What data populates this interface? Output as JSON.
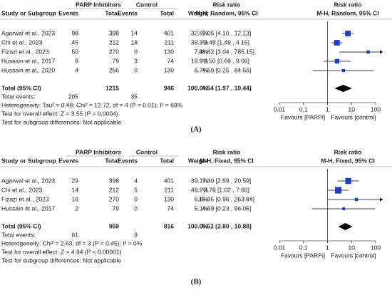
{
  "chart_data": [
    {
      "type": "forest",
      "label": "(A)",
      "header": {
        "group1": "PARP Inhibitors",
        "group2": "Control",
        "study": "Study or Subgroup",
        "events1": "Events",
        "total1": "Total",
        "events2": "Events",
        "total2": "Total",
        "weight": "Weight",
        "rr_title": "Risk ratio",
        "rr_method": "M-H, Random, 95% CI",
        "plot_title": "Risk ratio",
        "plot_method": "M-H, Random, 95% CI"
      },
      "studies": [
        {
          "name": "Agarwal et al., 2023",
          "events1": 98,
          "total1": 398,
          "events2": 14,
          "total2": 401,
          "weight": 32.8,
          "weight_label": "32.8%",
          "ci_label": "7.05 [4.10 , 12.13]",
          "rr": 7.05,
          "lower": 4.1,
          "upper": 12.13
        },
        {
          "name": "Chi et al., 2023",
          "events1": 45,
          "total1": 212,
          "events2": 18,
          "total2": 211,
          "weight": 33.3,
          "weight_label": "33.3%",
          "ci_label": "2.49 [1.49 , 4.15]",
          "rr": 2.49,
          "lower": 1.49,
          "upper": 4.15
        },
        {
          "name": "Fizazi et al., 2023",
          "events1": 50,
          "total1": 270,
          "events2": 0,
          "total2": 130,
          "weight": 7.3,
          "weight_label": "7.3%",
          "ci_label": "48.82 [3.04 , 785.15]",
          "rr": 48.82,
          "lower": 3.04,
          "upper": 785.15
        },
        {
          "name": "Hussain et al., 2017",
          "events1": 8,
          "total1": 79,
          "events2": 3,
          "total2": 74,
          "weight": 19.9,
          "weight_label": "19.9%",
          "ci_label": "2.50 [0.69 , 9.06]",
          "rr": 2.5,
          "lower": 0.69,
          "upper": 9.06
        },
        {
          "name": "Hussain et al., 2020",
          "events1": 4,
          "total1": 256,
          "events2": 0,
          "total2": 130,
          "weight": 6.7,
          "weight_label": "6.7%",
          "ci_label": "4.59 [0.25 , 84.56]",
          "rr": 4.59,
          "lower": 0.25,
          "upper": 84.56
        }
      ],
      "total": {
        "name": "Total (95% CI)",
        "total1": 1215,
        "total2": 946,
        "weight": 100,
        "weight_label": "100.0%",
        "ci_label": "4.54 [1.97 , 10.44]",
        "rr": 4.54,
        "lower": 1.97,
        "upper": 10.44
      },
      "total_events": {
        "name": "Total events:",
        "events1": 205,
        "events2": 35
      },
      "notes": [
        "Heterogeneity: Tau² = 0.48; Chi² = 12.72, df = 4 (P = 0.01); I² = 69%",
        "Test for overall effect: Z = 3.55 (P = 0.0004)",
        "Test for subgroup differences: Not applicable"
      ],
      "xlim": [
        0.01,
        100
      ],
      "xticks": [
        0.01,
        0.1,
        1,
        10,
        100
      ],
      "log_scale": true,
      "favours": [
        "Favours [PARPi]",
        "Favours [control]"
      ],
      "color": "#1f3fbf"
    },
    {
      "type": "forest",
      "label": "(B)",
      "header": {
        "group1": "PARP Inhibitors",
        "group2": "Control",
        "study": "Study or Subgroup",
        "events1": "Events",
        "total1": "Total",
        "events2": "Events",
        "total2": "Total",
        "weight": "Weight",
        "rr_title": "Risk ratio",
        "rr_method": "M-H, Fixed, 95% CI",
        "plot_title": "Risk ratio",
        "plot_method": "M-H, Fixed, 95% CI"
      },
      "studies": [
        {
          "name": "Agarwal et al., 2023",
          "events1": 29,
          "total1": 398,
          "events2": 4,
          "total2": 401,
          "weight": 39.1,
          "weight_label": "39.1%",
          "ci_label": "7.30 [2.59 , 20.59]",
          "rr": 7.3,
          "lower": 2.59,
          "upper": 20.59
        },
        {
          "name": "Chi et al., 2023",
          "events1": 14,
          "total1": 212,
          "events2": 5,
          "total2": 211,
          "weight": 49.2,
          "weight_label": "49.2%",
          "ci_label": "2.79 [1.02 , 7.60]",
          "rr": 2.79,
          "lower": 1.02,
          "upper": 7.6
        },
        {
          "name": "Fizazi et al., 2023",
          "events1": 16,
          "total1": 270,
          "events2": 0,
          "total2": 130,
          "weight": 6.6,
          "weight_label": "6.6%",
          "ci_label": "15.95 [0.96 , 263.84]",
          "rr": 15.95,
          "lower": 0.96,
          "upper": 263.84
        },
        {
          "name": "Hussain et al., 2017",
          "events1": 2,
          "total1": 79,
          "events2": 0,
          "total2": 74,
          "weight": 5.1,
          "weight_label": "5.1%",
          "ci_label": "4.69 [0.23 , 96.05]",
          "rr": 4.69,
          "lower": 0.23,
          "upper": 96.05
        }
      ],
      "total": {
        "name": "Total (95% CI)",
        "total1": 959,
        "total2": 816,
        "weight": 100,
        "weight_label": "100.0%",
        "ci_label": "5.52 [2.80 , 10.88]",
        "rr": 5.52,
        "lower": 2.8,
        "upper": 10.88
      },
      "total_events": {
        "name": "Total events:",
        "events1": 61,
        "events2": 9
      },
      "notes": [
        "Heterogeneity: Chi² = 2.63, df = 3 (P = 0.45); I² = 0%",
        "Test for overall effect: Z = 4.94 (P < 0.00001)",
        "Test for subgroup differences: Not applicable"
      ],
      "xlim": [
        0.01,
        100
      ],
      "xticks": [
        0.01,
        0.1,
        1,
        10,
        100
      ],
      "log_scale": true,
      "favours": [
        "Favours [PARPi]",
        "Favours [control]"
      ],
      "color": "#1f3fbf"
    }
  ]
}
